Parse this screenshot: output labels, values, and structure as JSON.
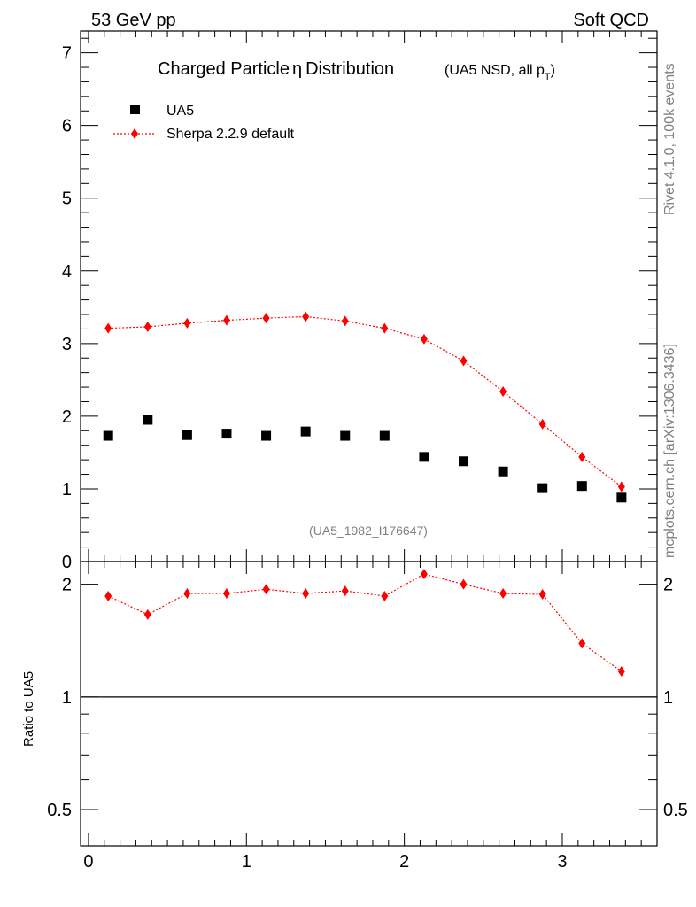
{
  "header": {
    "left": "53 GeV pp",
    "right": "Soft QCD"
  },
  "side_labels": {
    "rivet": "Rivet 4.1.0,  100k events",
    "mcplots": "mcplots.cern.ch [arXiv:1306.3436]"
  },
  "colors": {
    "data": "#000000",
    "mc": "#ff0000",
    "grey_text": "#808080"
  },
  "chart_data": [
    {
      "type": "scatter",
      "title": "Charged Particle",
      "title_symbol": "η",
      "title_suffix": "Distribution",
      "subtitle": "(UA5 NSD, all p",
      "subtitle_sub": "T",
      "subtitle_close": ")",
      "analysis_id": "(UA5_1982_I176647)",
      "xlabel": "",
      "ylabel": "",
      "xlim": [
        -0.05,
        3.6
      ],
      "ylim": [
        0,
        7.3
      ],
      "x_ticks": [
        0,
        1,
        2,
        3
      ],
      "y_ticks": [
        0,
        1,
        2,
        3,
        4,
        5,
        6,
        7
      ],
      "x": [
        0.125,
        0.375,
        0.625,
        0.875,
        1.125,
        1.375,
        1.625,
        1.875,
        2.125,
        2.375,
        2.625,
        2.875,
        3.125,
        3.375
      ],
      "legend_position": "top-left",
      "series": [
        {
          "name": "UA5",
          "marker": "square",
          "values": [
            1.73,
            1.95,
            1.74,
            1.76,
            1.73,
            1.79,
            1.73,
            1.73,
            1.44,
            1.38,
            1.24,
            1.01,
            1.04,
            0.88
          ]
        },
        {
          "name": "Sherpa 2.2.9 default",
          "marker": "diamond",
          "line": "dotted",
          "values": [
            3.21,
            3.23,
            3.28,
            3.32,
            3.35,
            3.37,
            3.31,
            3.21,
            3.06,
            2.76,
            2.34,
            1.89,
            1.44,
            1.03
          ]
        }
      ]
    },
    {
      "type": "line",
      "ylabel": "Ratio to UA5",
      "scale": "log",
      "ylim": [
        0.4,
        2.3
      ],
      "y_ticks": [
        0.5,
        1,
        2
      ],
      "reference_line": 1,
      "x": [
        0.125,
        0.375,
        0.625,
        0.875,
        1.125,
        1.375,
        1.625,
        1.875,
        2.125,
        2.375,
        2.625,
        2.875,
        3.125,
        3.375
      ],
      "series": [
        {
          "name": "Sherpa 2.2.9 default / UA5",
          "values": [
            1.86,
            1.66,
            1.89,
            1.89,
            1.94,
            1.89,
            1.92,
            1.86,
            2.13,
            2.0,
            1.89,
            1.88,
            1.39,
            1.17
          ]
        }
      ]
    }
  ]
}
